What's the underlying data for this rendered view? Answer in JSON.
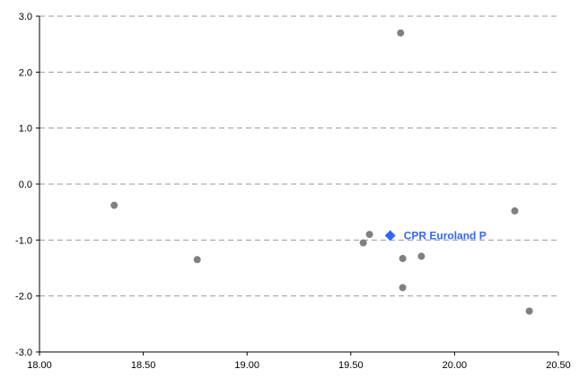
{
  "chart_data": {
    "type": "scatter",
    "title": "",
    "xlabel": "",
    "ylabel": "",
    "xlim": [
      18.0,
      20.5
    ],
    "ylim": [
      -3.0,
      3.0
    ],
    "x_ticks": [
      "18.00",
      "18.50",
      "19.00",
      "19.50",
      "20.00",
      "20.50"
    ],
    "y_ticks": [
      "3.0",
      "2.0",
      "1.0",
      "0.0",
      "-1.0",
      "-2.0",
      "-3.0"
    ],
    "grid": "horizontal dashed",
    "series": [
      {
        "points": [
          {
            "x": 18.36,
            "y": -0.38
          },
          {
            "x": 18.76,
            "y": -1.35
          },
          {
            "x": 19.56,
            "y": -1.05
          },
          {
            "x": 19.59,
            "y": -0.9
          },
          {
            "x": 19.74,
            "y": 2.7
          },
          {
            "x": 19.75,
            "y": -1.33
          },
          {
            "x": 19.75,
            "y": -1.85
          },
          {
            "x": 19.84,
            "y": -1.29
          },
          {
            "x": 20.29,
            "y": -0.48
          },
          {
            "x": 20.36,
            "y": -2.27
          }
        ],
        "color": "#808080"
      },
      {
        "name": "CPR Euroland P",
        "points": [
          {
            "x": 19.69,
            "y": -0.92
          }
        ],
        "color": "#3366ff",
        "marker": "diamond"
      }
    ]
  }
}
